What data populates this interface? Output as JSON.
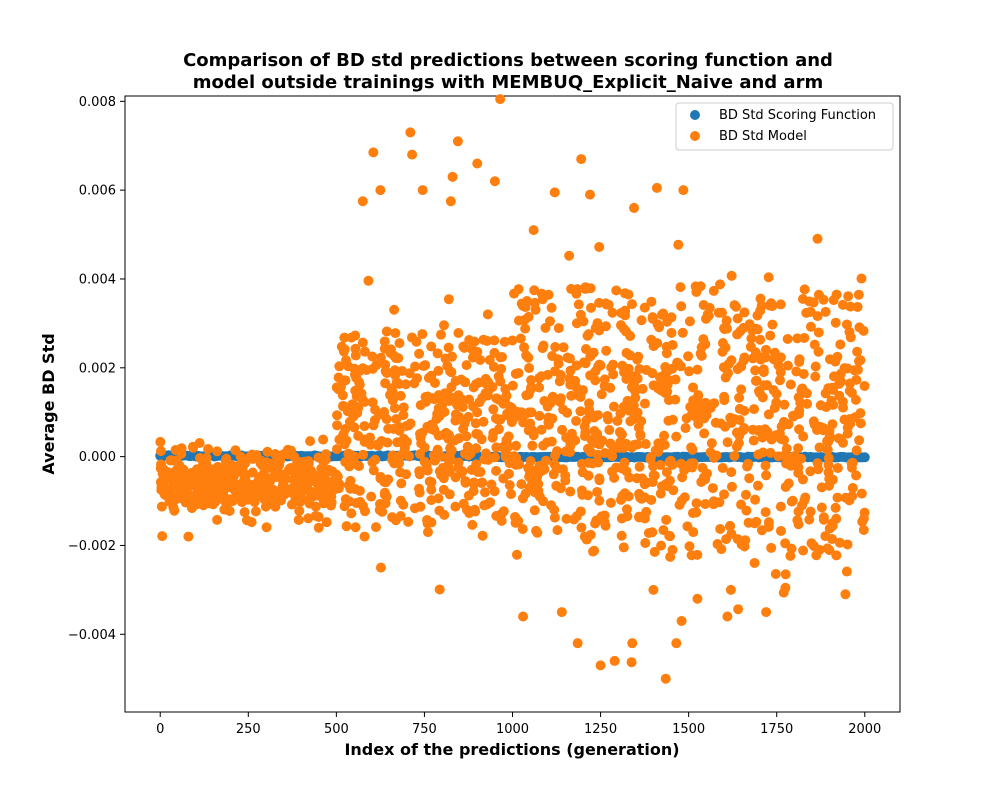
{
  "chart_data": {
    "type": "scatter",
    "title": "Comparison of BD std predictions between scoring function and\nmodel outside trainings with MEMBUQ_Explicit_Naive and arm",
    "xlabel": "Index of the predictions (generation)",
    "ylabel": "Average BD Std",
    "xlim": [
      -100,
      2100
    ],
    "ylim": [
      -0.00575,
      0.00812
    ],
    "xticks": [
      0,
      250,
      500,
      750,
      1000,
      1250,
      1500,
      1750,
      2000
    ],
    "xtick_labels": [
      "0",
      "250",
      "500",
      "750",
      "1000",
      "1250",
      "1500",
      "1750",
      "2000"
    ],
    "yticks": [
      -0.004,
      -0.002,
      0.0,
      0.002,
      0.004,
      0.006,
      0.008
    ],
    "ytick_labels": [
      "−0.004",
      "−0.002",
      "0.000",
      "0.002",
      "0.004",
      "0.006",
      "0.008"
    ],
    "grid": false,
    "legend_position": "top-right",
    "series": [
      {
        "name": "BD Std Scoring Function",
        "color": "#1f77b4",
        "x": [
          0,
          2000
        ],
        "y": [
          0.0,
          0.0
        ],
        "note_count": 2000
      },
      {
        "name": "BD Std Model",
        "color": "#ff7f0e",
        "x_range": [
          0,
          2000
        ],
        "segments": [
          {
            "x_from": 0,
            "x_to": 500,
            "center": -0.0006,
            "spread": 0.0009
          },
          {
            "x_from": 500,
            "x_to": 1000,
            "center": 0.0006,
            "spread": 0.0028
          },
          {
            "x_from": 1000,
            "x_to": 2000,
            "center": 0.0008,
            "spread": 0.0038
          }
        ],
        "highlights": [
          {
            "x": 965,
            "y": 0.00805
          },
          {
            "x": 710,
            "y": 0.0073
          },
          {
            "x": 845,
            "y": 0.0071
          },
          {
            "x": 605,
            "y": 0.00685
          },
          {
            "x": 715,
            "y": 0.0068
          },
          {
            "x": 1195,
            "y": 0.0067
          },
          {
            "x": 900,
            "y": 0.0066
          },
          {
            "x": 830,
            "y": 0.0063
          },
          {
            "x": 950,
            "y": 0.0062
          },
          {
            "x": 1410,
            "y": 0.00605
          },
          {
            "x": 625,
            "y": 0.006
          },
          {
            "x": 745,
            "y": 0.006
          },
          {
            "x": 1485,
            "y": 0.006
          },
          {
            "x": 1120,
            "y": 0.00595
          },
          {
            "x": 1220,
            "y": 0.0059
          },
          {
            "x": 575,
            "y": 0.00575
          },
          {
            "x": 825,
            "y": 0.00575
          },
          {
            "x": 1345,
            "y": 0.0056
          },
          {
            "x": 1060,
            "y": 0.0051
          },
          {
            "x": 1435,
            "y": -0.005
          },
          {
            "x": 1250,
            "y": -0.0047
          },
          {
            "x": 1290,
            "y": -0.0046
          },
          {
            "x": 1465,
            "y": -0.0042
          },
          {
            "x": 1340,
            "y": -0.0042
          },
          {
            "x": 1185,
            "y": -0.0042
          },
          {
            "x": 1480,
            "y": -0.0037
          },
          {
            "x": 1030,
            "y": -0.0036
          },
          {
            "x": 1610,
            "y": -0.0036
          },
          {
            "x": 1140,
            "y": -0.0035
          },
          {
            "x": 1720,
            "y": -0.0035
          },
          {
            "x": 1945,
            "y": -0.0031
          },
          {
            "x": 1525,
            "y": -0.0032
          },
          {
            "x": 1620,
            "y": -0.003
          },
          {
            "x": 1400,
            "y": -0.003
          },
          {
            "x": 580,
            "y": -0.0018
          },
          {
            "x": 80,
            "y": -0.0018
          },
          {
            "x": 760,
            "y": -0.0017
          },
          {
            "x": 450,
            "y": -0.0016
          }
        ]
      }
    ]
  }
}
